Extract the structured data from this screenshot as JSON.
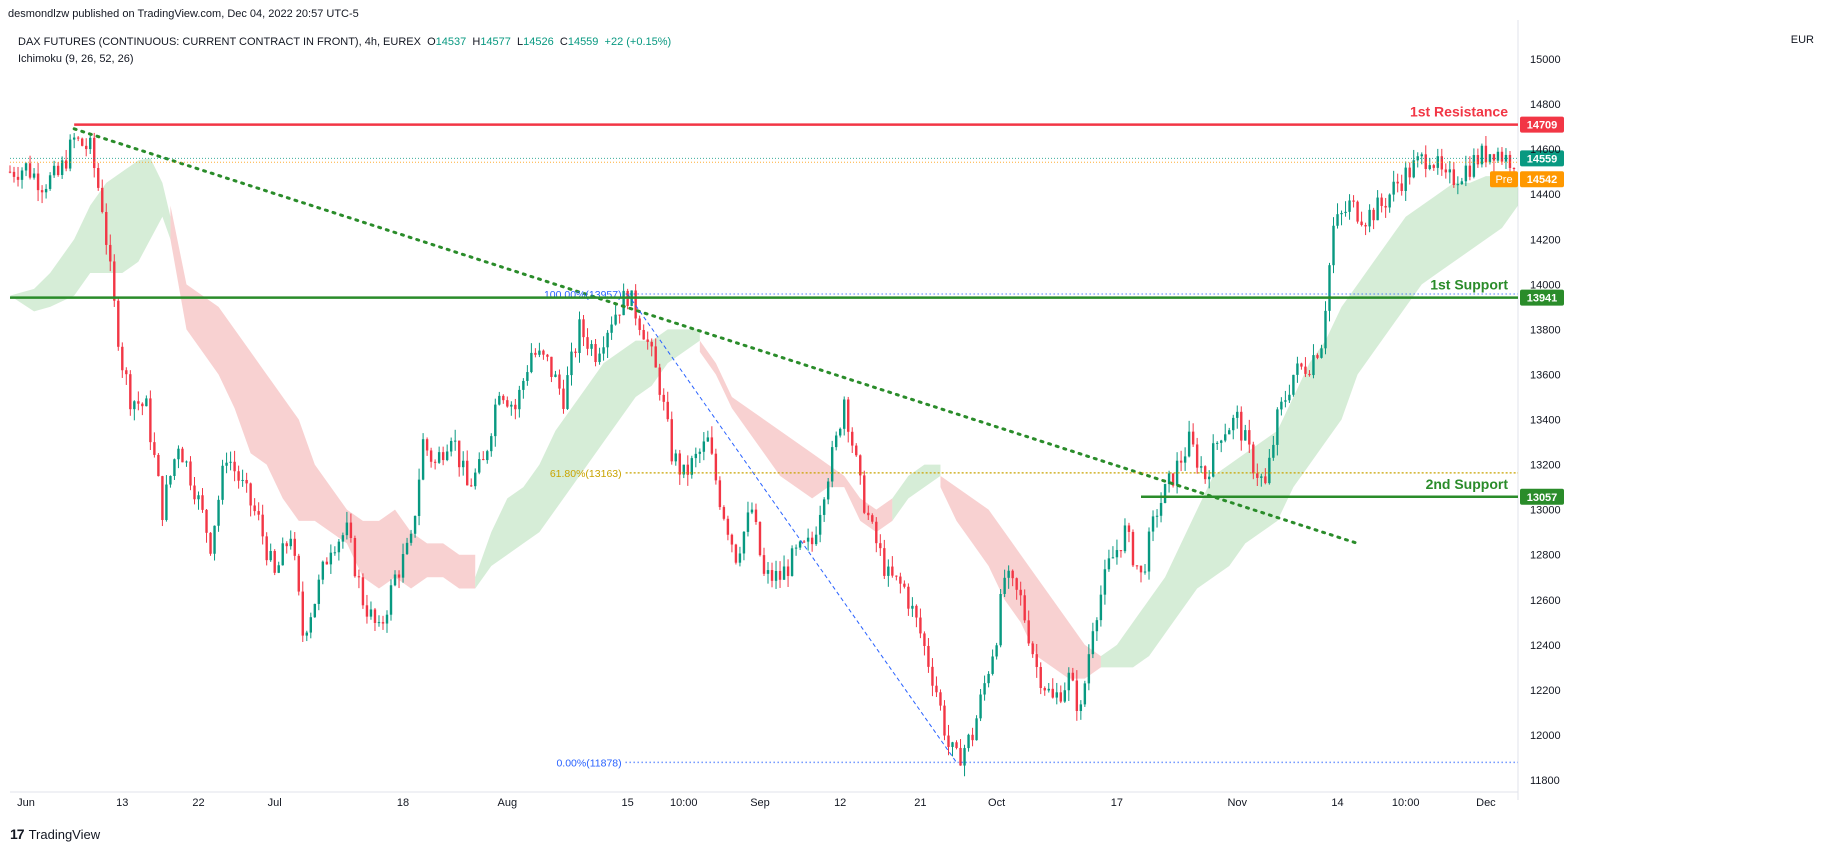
{
  "header": {
    "published_by": "desmondlzw published on TradingView.com, Dec 04, 2022 20:57 UTC-5",
    "symbol": "DAX FUTURES (CONTINUOUS: CURRENT CONTRACT IN FRONT), 4h, EUREX",
    "ohlc": {
      "o_label": "O",
      "o": "14537",
      "h_label": "H",
      "h": "14577",
      "l_label": "L",
      "l": "14526",
      "c_label": "C",
      "c": "14559",
      "change": "+22 (+0.15%)"
    },
    "indicator": "Ichimoku (9, 26, 52, 26)",
    "currency": "EUR"
  },
  "brand": {
    "logo": "17",
    "name": "TradingView"
  },
  "colors": {
    "up": "#089981",
    "down": "#f23645",
    "resistance": "#f23645",
    "support": "#2a8c2a",
    "pre": "#ff9800",
    "fib": "#2962ff",
    "fib618": "#c9a300",
    "cloud_green": "#a5d6a7",
    "cloud_red": "#ef9a9a"
  },
  "chart_data": {
    "type": "line",
    "price_axis": {
      "min": 11800,
      "max": 15000,
      "ticks": [
        11800,
        12000,
        12200,
        12400,
        12600,
        12800,
        13000,
        13200,
        13400,
        13600,
        13800,
        14000,
        14200,
        14400,
        14600,
        14800,
        15000
      ]
    },
    "time_axis_labels": [
      {
        "label": "Jun",
        "idx": 4
      },
      {
        "label": "13",
        "idx": 28
      },
      {
        "label": "22",
        "idx": 47
      },
      {
        "label": "Jul",
        "idx": 66
      },
      {
        "label": "18",
        "idx": 98
      },
      {
        "label": "Aug",
        "idx": 124
      },
      {
        "label": "15",
        "idx": 154
      },
      {
        "label": "10:00",
        "idx": 168
      },
      {
        "label": "Sep",
        "idx": 187
      },
      {
        "label": "12",
        "idx": 207
      },
      {
        "label": "21",
        "idx": 227
      },
      {
        "label": "Oct",
        "idx": 246
      },
      {
        "label": "17",
        "idx": 276
      },
      {
        "label": "Nov",
        "idx": 306
      },
      {
        "label": "14",
        "idx": 331
      },
      {
        "label": "10:00",
        "idx": 348
      },
      {
        "label": "Dec",
        "idx": 368
      }
    ],
    "close_path": [
      [
        0,
        14500
      ],
      [
        4,
        14520
      ],
      [
        8,
        14450
      ],
      [
        12,
        14480
      ],
      [
        16,
        14640
      ],
      [
        20,
        14600
      ],
      [
        23,
        14350
      ],
      [
        26,
        13900
      ],
      [
        28,
        13650
      ],
      [
        30,
        13500
      ],
      [
        34,
        13450
      ],
      [
        38,
        13000
      ],
      [
        42,
        13300
      ],
      [
        46,
        13100
      ],
      [
        50,
        12850
      ],
      [
        54,
        13250
      ],
      [
        58,
        13100
      ],
      [
        62,
        12950
      ],
      [
        66,
        12700
      ],
      [
        70,
        12900
      ],
      [
        73,
        12450
      ],
      [
        76,
        12600
      ],
      [
        80,
        12850
      ],
      [
        84,
        12900
      ],
      [
        88,
        12600
      ],
      [
        92,
        12450
      ],
      [
        96,
        12700
      ],
      [
        100,
        12850
      ],
      [
        103,
        13300
      ],
      [
        106,
        13200
      ],
      [
        110,
        13350
      ],
      [
        114,
        13100
      ],
      [
        118,
        13200
      ],
      [
        122,
        13550
      ],
      [
        126,
        13450
      ],
      [
        130,
        13700
      ],
      [
        134,
        13650
      ],
      [
        138,
        13500
      ],
      [
        142,
        13800
      ],
      [
        146,
        13700
      ],
      [
        150,
        13850
      ],
      [
        154,
        13957
      ],
      [
        158,
        13800
      ],
      [
        162,
        13550
      ],
      [
        165,
        13250
      ],
      [
        168,
        13150
      ],
      [
        172,
        13250
      ],
      [
        174,
        13300
      ],
      [
        177,
        13050
      ],
      [
        181,
        12800
      ],
      [
        185,
        13000
      ],
      [
        188,
        12700
      ],
      [
        192,
        12700
      ],
      [
        196,
        12800
      ],
      [
        200,
        12850
      ],
      [
        203,
        13100
      ],
      [
        206,
        13300
      ],
      [
        208,
        13500
      ],
      [
        210,
        13300
      ],
      [
        212,
        13100
      ],
      [
        215,
        12900
      ],
      [
        219,
        12700
      ],
      [
        223,
        12650
      ],
      [
        227,
        12450
      ],
      [
        231,
        12200
      ],
      [
        234,
        11950
      ],
      [
        236,
        11890
      ],
      [
        240,
        12000
      ],
      [
        244,
        12300
      ],
      [
        246,
        12450
      ],
      [
        248,
        12700
      ],
      [
        252,
        12600
      ],
      [
        256,
        12300
      ],
      [
        260,
        12150
      ],
      [
        264,
        12250
      ],
      [
        267,
        12100
      ],
      [
        270,
        12500
      ],
      [
        274,
        12750
      ],
      [
        278,
        12900
      ],
      [
        282,
        12700
      ],
      [
        286,
        13000
      ],
      [
        290,
        13150
      ],
      [
        294,
        13300
      ],
      [
        298,
        13150
      ],
      [
        302,
        13350
      ],
      [
        306,
        13400
      ],
      [
        310,
        13200
      ],
      [
        313,
        13100
      ],
      [
        316,
        13400
      ],
      [
        320,
        13600
      ],
      [
        324,
        13650
      ],
      [
        327,
        13750
      ],
      [
        330,
        14250
      ],
      [
        334,
        14350
      ],
      [
        338,
        14300
      ],
      [
        342,
        14350
      ],
      [
        346,
        14450
      ],
      [
        350,
        14520
      ],
      [
        354,
        14580
      ],
      [
        358,
        14450
      ],
      [
        362,
        14500
      ],
      [
        366,
        14559
      ],
      [
        370,
        14600
      ],
      [
        373,
        14559
      ]
    ],
    "total_bars": 376,
    "cloud": [
      {
        "color": "green",
        "points": [
          [
            0,
            13950,
            13950
          ],
          [
            6,
            13980,
            13880
          ],
          [
            10,
            14050,
            13900
          ],
          [
            16,
            14200,
            13950
          ],
          [
            20,
            14350,
            14050
          ],
          [
            24,
            14450,
            14050
          ],
          [
            28,
            14500,
            14050
          ],
          [
            32,
            14550,
            14100
          ],
          [
            35,
            14560,
            14200
          ],
          [
            38,
            14450,
            14300
          ],
          [
            40,
            14200,
            14300
          ]
        ]
      },
      {
        "color": "red",
        "points": [
          [
            40,
            14200,
            14350
          ],
          [
            44,
            13800,
            14000
          ],
          [
            48,
            13700,
            13950
          ],
          [
            52,
            13600,
            13900
          ],
          [
            56,
            13450,
            13800
          ],
          [
            60,
            13250,
            13700
          ],
          [
            64,
            13200,
            13600
          ],
          [
            68,
            13050,
            13500
          ],
          [
            72,
            12950,
            13400
          ],
          [
            76,
            12950,
            13200
          ],
          [
            80,
            12900,
            13100
          ],
          [
            84,
            12850,
            13000
          ],
          [
            88,
            12700,
            12950
          ],
          [
            92,
            12650,
            12950
          ],
          [
            96,
            12700,
            13000
          ],
          [
            100,
            12650,
            12900
          ],
          [
            104,
            12700,
            12850
          ],
          [
            108,
            12700,
            12850
          ],
          [
            112,
            12650,
            12800
          ],
          [
            116,
            12650,
            12800
          ]
        ]
      },
      {
        "color": "green",
        "points": [
          [
            116,
            12650,
            12700
          ],
          [
            120,
            12900,
            12750
          ],
          [
            124,
            13050,
            12800
          ],
          [
            128,
            13100,
            12850
          ],
          [
            132,
            13200,
            12900
          ],
          [
            136,
            13350,
            13000
          ],
          [
            140,
            13450,
            13100
          ],
          [
            144,
            13550,
            13200
          ],
          [
            148,
            13650,
            13300
          ],
          [
            152,
            13700,
            13400
          ],
          [
            156,
            13750,
            13500
          ],
          [
            160,
            13750,
            13550
          ],
          [
            164,
            13800,
            13650
          ],
          [
            168,
            13800,
            13700
          ],
          [
            172,
            13800,
            13750
          ]
        ]
      },
      {
        "color": "red",
        "points": [
          [
            172,
            13750,
            13700
          ],
          [
            176,
            13650,
            13600
          ],
          [
            180,
            13450,
            13500
          ],
          [
            184,
            13350,
            13450
          ],
          [
            188,
            13250,
            13400
          ],
          [
            192,
            13150,
            13350
          ],
          [
            196,
            13100,
            13300
          ],
          [
            200,
            13050,
            13250
          ],
          [
            204,
            13100,
            13200
          ],
          [
            208,
            13100,
            13150
          ],
          [
            212,
            12950,
            13050
          ],
          [
            216,
            12900,
            13000
          ],
          [
            220,
            12950,
            13050
          ]
        ]
      },
      {
        "color": "green",
        "points": [
          [
            220,
            13050,
            12950
          ],
          [
            224,
            13150,
            13050
          ],
          [
            228,
            13200,
            13100
          ],
          [
            232,
            13200,
            13150
          ]
        ]
      },
      {
        "color": "red",
        "points": [
          [
            232,
            13100,
            13150
          ],
          [
            236,
            12950,
            13100
          ],
          [
            240,
            12850,
            13050
          ],
          [
            244,
            12750,
            13000
          ],
          [
            248,
            12600,
            12900
          ],
          [
            252,
            12500,
            12800
          ],
          [
            256,
            12350,
            12700
          ],
          [
            260,
            12300,
            12600
          ],
          [
            264,
            12250,
            12500
          ],
          [
            268,
            12250,
            12400
          ],
          [
            272,
            12300,
            12350
          ]
        ]
      },
      {
        "color": "green",
        "points": [
          [
            272,
            12350,
            12300
          ],
          [
            276,
            12400,
            12300
          ],
          [
            280,
            12500,
            12300
          ],
          [
            284,
            12600,
            12350
          ],
          [
            288,
            12700,
            12450
          ],
          [
            292,
            12850,
            12550
          ],
          [
            296,
            13000,
            12650
          ],
          [
            300,
            13150,
            12700
          ],
          [
            304,
            13200,
            12750
          ],
          [
            308,
            13250,
            12850
          ],
          [
            312,
            13300,
            12900
          ],
          [
            316,
            13350,
            12950
          ],
          [
            320,
            13500,
            13100
          ],
          [
            324,
            13650,
            13200
          ],
          [
            328,
            13750,
            13300
          ],
          [
            332,
            13900,
            13400
          ],
          [
            336,
            14000,
            13600
          ],
          [
            340,
            14100,
            13700
          ],
          [
            344,
            14200,
            13800
          ],
          [
            348,
            14300,
            13900
          ],
          [
            352,
            14350,
            14000
          ],
          [
            356,
            14400,
            14050
          ],
          [
            360,
            14450,
            14100
          ],
          [
            364,
            14450,
            14150
          ],
          [
            368,
            14480,
            14200
          ],
          [
            372,
            14480,
            14250
          ],
          [
            376,
            14480,
            14350
          ]
        ]
      }
    ],
    "levels": [
      {
        "name": "1st Resistance",
        "value": 14709,
        "color": "#f23645",
        "tag": "14709",
        "from": 16
      },
      {
        "name": "1st Support",
        "value": 13941,
        "color": "#2a8c2a",
        "tag": "13941",
        "from": 0
      },
      {
        "name": "2nd Support",
        "value": 13057,
        "color": "#2a8c2a",
        "tag": "13057",
        "from": 282
      }
    ],
    "price_tags": [
      {
        "value": 14559,
        "label": "14559",
        "color": "#089981"
      },
      {
        "value": 14542,
        "label": "14542",
        "color": "#ff9800",
        "prefix": "Pre"
      }
    ],
    "trendline": {
      "from": [
        16,
        14690
      ],
      "to": [
        336,
        12850
      ]
    },
    "fib": {
      "top": {
        "idx": 154,
        "value": 13957,
        "label": "100.00%(13957)"
      },
      "mid": {
        "value": 13163,
        "label": "61.80%(13163)"
      },
      "bottom": {
        "idx": 236,
        "value": 11878,
        "label": "0.00%(11878)"
      },
      "end_idx": 376
    }
  }
}
